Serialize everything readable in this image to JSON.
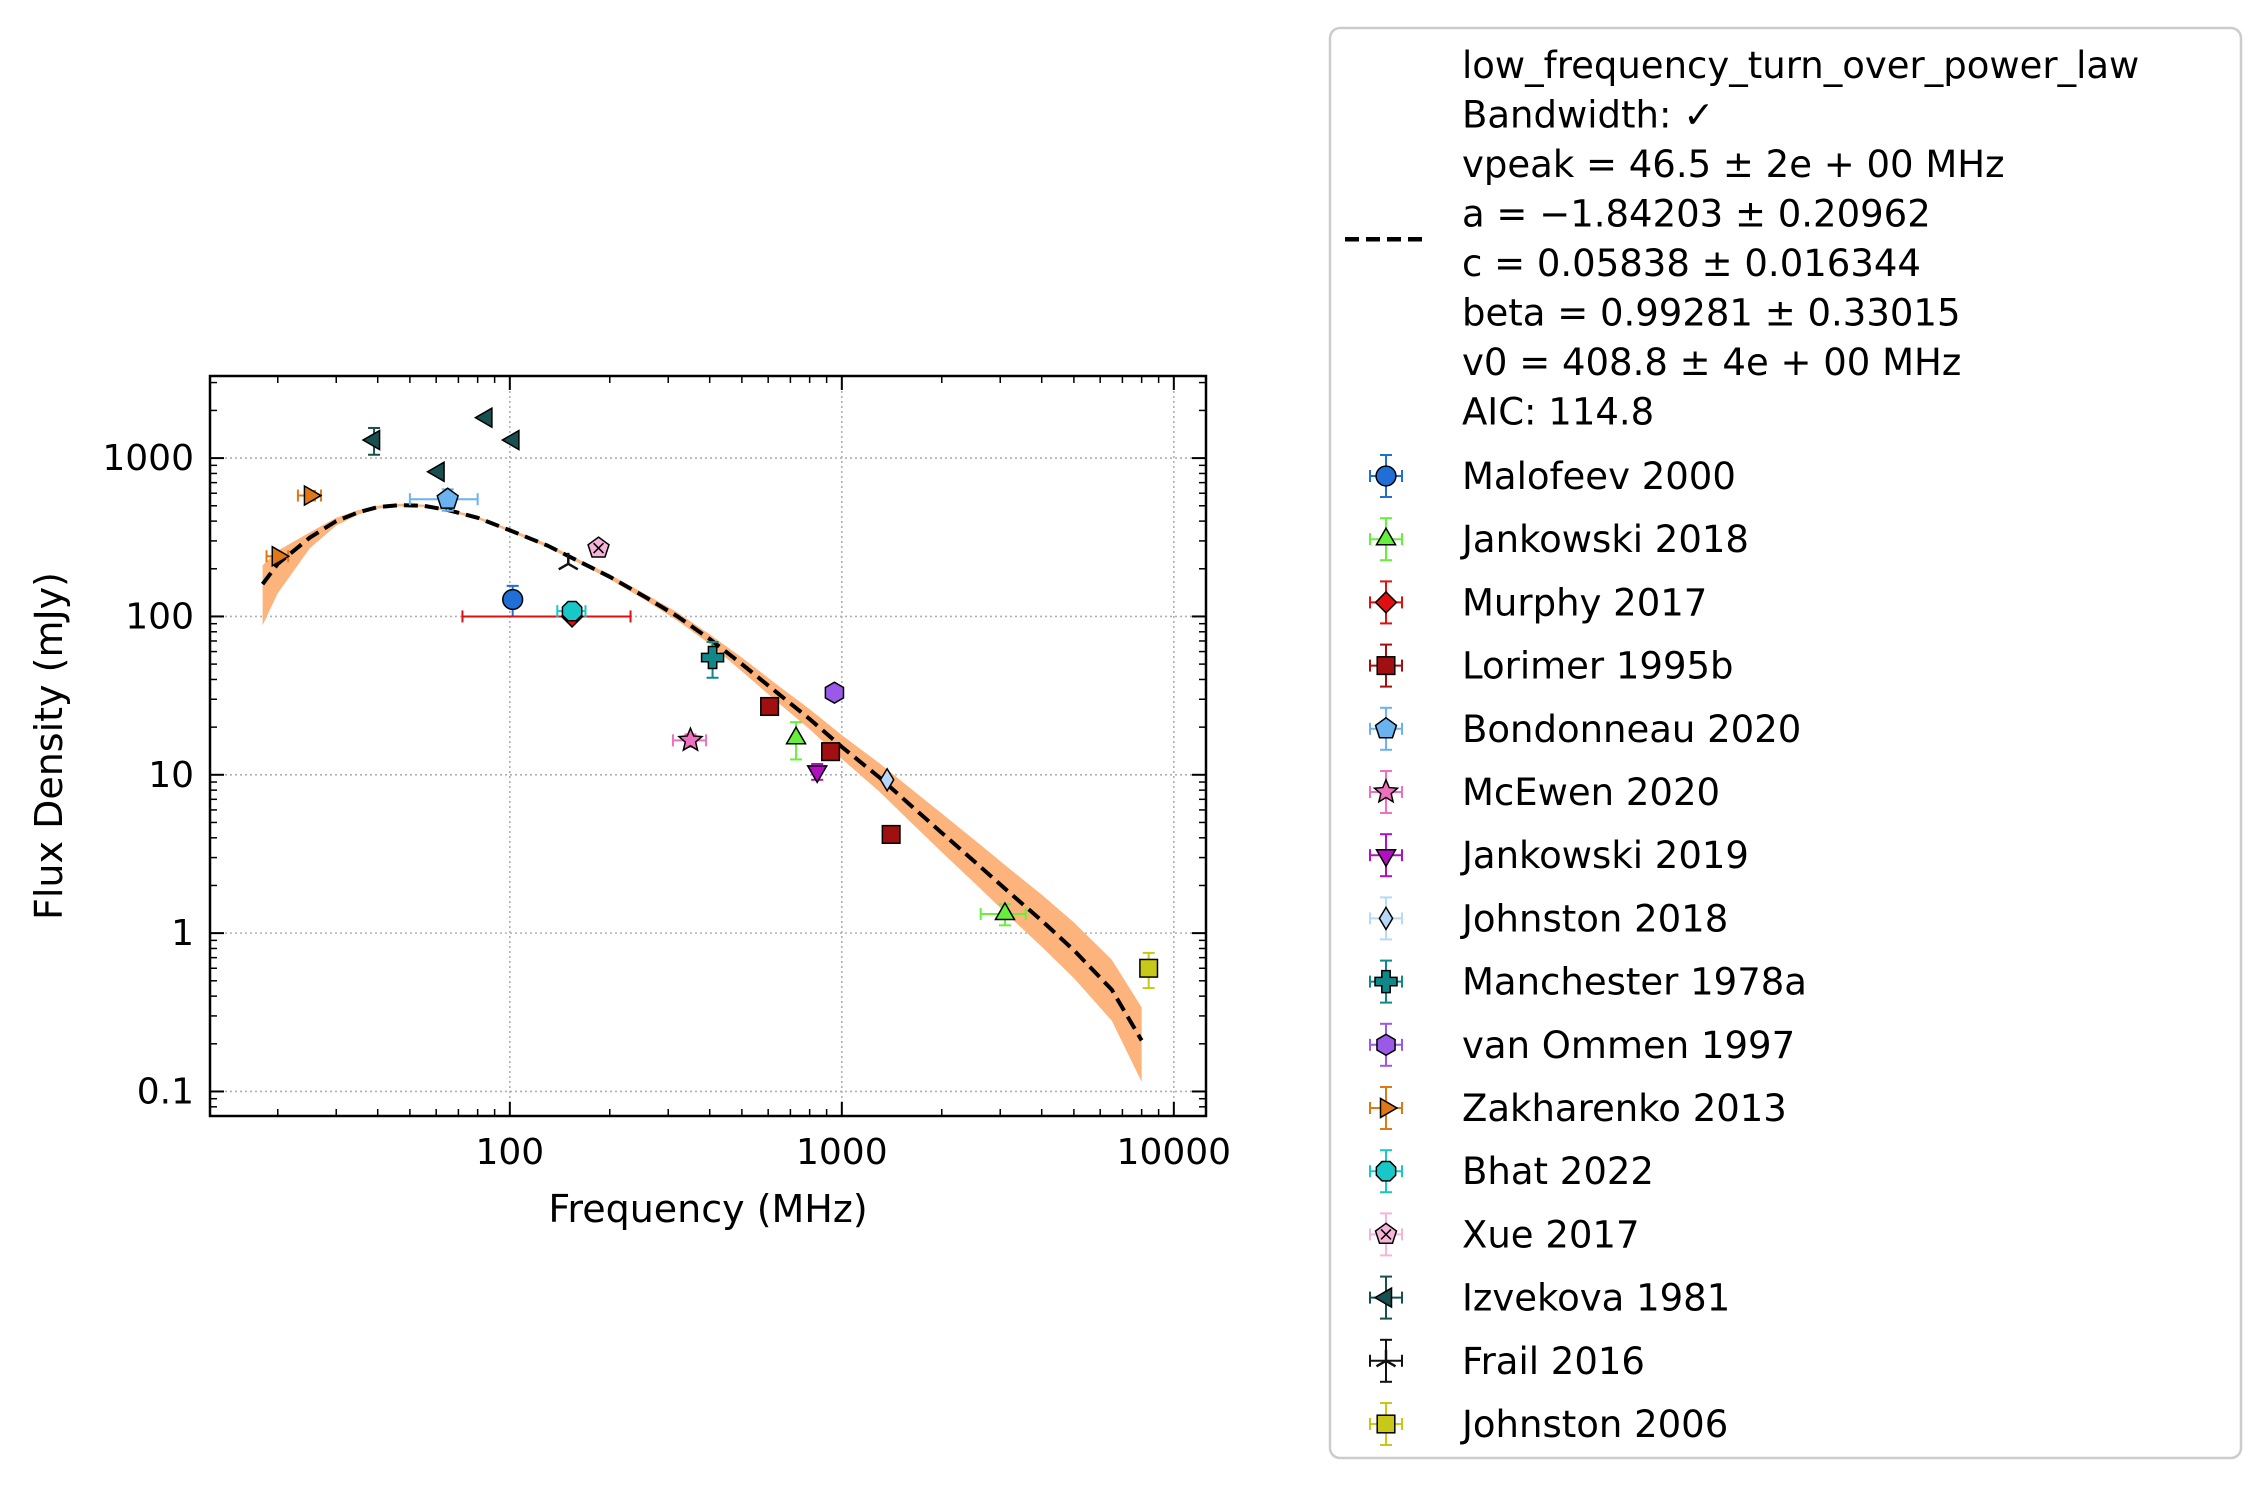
{
  "chart_data": {
    "type": "scatter",
    "xlabel": "Frequency (MHz)",
    "ylabel": "Flux Density (mJy)",
    "x_scale": "log",
    "y_scale": "log",
    "xlim": [
      12.5,
      12500
    ],
    "ylim": [
      0.07,
      3300
    ],
    "x_ticks": [
      {
        "value": 100,
        "label": "100"
      },
      {
        "value": 1000,
        "label": "1000"
      },
      {
        "value": 10000,
        "label": "10000"
      }
    ],
    "y_ticks": [
      {
        "value": 0.1,
        "label": "0.1"
      },
      {
        "value": 1,
        "label": "1"
      },
      {
        "value": 10,
        "label": "10"
      },
      {
        "value": 100,
        "label": "100"
      },
      {
        "value": 1000,
        "label": "1000"
      }
    ],
    "grid": true,
    "legend_placement": "outside-right",
    "fit": {
      "name": "low_frequency_turn_over_power_law",
      "line_style": "dashed",
      "color": "#000000",
      "band_color": "#fdb47c",
      "legend_lines": [
        "low_frequency_turn_over_power_law",
        "Bandwidth: ✓",
        "vpeak = 46.5 ± 2e + 00 MHz",
        "a = −1.84203 ± 0.20962",
        "c = 0.05838 ± 0.016344",
        "beta = 0.99281 ± 0.33015",
        "v0 = 408.8 ± 4e + 00 MHz",
        "AIC: 114.8"
      ],
      "x": [
        18,
        20,
        25,
        30,
        35,
        40,
        46.5,
        55,
        65,
        80,
        100,
        130,
        160,
        200,
        260,
        320,
        400,
        500,
        650,
        800,
        1000,
        1300,
        1600,
        2000,
        2600,
        3200,
        4000,
        5000,
        6500,
        8000
      ],
      "y": [
        160,
        215,
        315,
        400,
        455,
        490,
        505,
        500,
        470,
        420,
        350,
        280,
        225,
        178,
        130,
        100,
        72,
        50,
        32,
        22.5,
        15,
        9.6,
        6.5,
        4.3,
        2.65,
        1.8,
        1.2,
        0.78,
        0.44,
        0.21
      ],
      "band_upper": [
        210,
        260,
        340,
        420,
        470,
        500,
        515,
        508,
        478,
        428,
        357,
        287,
        231,
        184,
        136,
        106,
        77,
        55,
        36,
        26,
        17.8,
        11.8,
        8.3,
        5.7,
        3.65,
        2.55,
        1.75,
        1.17,
        0.68,
        0.34
      ],
      "band_lower": [
        88,
        140,
        270,
        375,
        440,
        480,
        495,
        492,
        462,
        412,
        343,
        273,
        219,
        172,
        124,
        94,
        67,
        45,
        28,
        19.4,
        12.6,
        7.8,
        5.1,
        3.25,
        1.93,
        1.27,
        0.82,
        0.52,
        0.28,
        0.115
      ]
    },
    "series": [
      {
        "name": "Malofeev 2000",
        "marker": "circle",
        "color": "#1f6fd6",
        "points": [
          {
            "x": 102,
            "y": 128,
            "xerr": [
              0,
              0
            ],
            "yerr": [
              28,
              28
            ]
          }
        ]
      },
      {
        "name": "Jankowski 2018",
        "marker": "triangle-up",
        "color": "#66f03c",
        "points": [
          {
            "x": 728,
            "y": 17,
            "xerr": [
              0,
              0
            ],
            "yerr": [
              4.5,
              4.5
            ]
          },
          {
            "x": 3100,
            "y": 1.32,
            "xerr": [
              480,
              480
            ],
            "yerr": [
              0.2,
              0.2
            ]
          }
        ]
      },
      {
        "name": "Murphy 2017",
        "marker": "diamond",
        "color": "#e01010",
        "points": [
          {
            "x": 154,
            "y": 100,
            "xerr": [
              82,
              77
            ],
            "yerr": [
              0,
              0
            ]
          }
        ]
      },
      {
        "name": "Lorimer 1995b",
        "marker": "square",
        "color": "#a01010",
        "points": [
          {
            "x": 606,
            "y": 27,
            "xerr": [
              0,
              0
            ],
            "yerr": [
              0,
              0
            ]
          },
          {
            "x": 925,
            "y": 14,
            "xerr": [
              0,
              0
            ],
            "yerr": [
              0,
              0
            ]
          },
          {
            "x": 1408,
            "y": 4.2,
            "xerr": [
              0,
              0
            ],
            "yerr": [
              0,
              0
            ]
          }
        ]
      },
      {
        "name": "Bondonneau 2020",
        "marker": "pentagon",
        "color": "#6ab3f0",
        "points": [
          {
            "x": 65,
            "y": 550,
            "xerr": [
              15,
              15
            ],
            "yerr": [
              85,
              85
            ]
          }
        ]
      },
      {
        "name": "McEwen 2020",
        "marker": "star",
        "color": "#f070c0",
        "points": [
          {
            "x": 350,
            "y": 16.5,
            "xerr": [
              40,
              40
            ],
            "yerr": [
              1.5,
              1.5
            ]
          }
        ]
      },
      {
        "name": "Jankowski 2019",
        "marker": "triangle-down",
        "color": "#b010c0",
        "points": [
          {
            "x": 843,
            "y": 10.5,
            "xerr": [
              0,
              0
            ],
            "yerr": [
              1.2,
              1.2
            ]
          }
        ]
      },
      {
        "name": "Johnston 2018",
        "marker": "thin-diamond",
        "color": "#b8d8f8",
        "points": [
          {
            "x": 1369,
            "y": 9.3,
            "xerr": [
              0,
              0
            ],
            "yerr": [
              0,
              0
            ]
          }
        ]
      },
      {
        "name": "Manchester 1978a",
        "marker": "plus",
        "color": "#108888",
        "points": [
          {
            "x": 408,
            "y": 55,
            "xerr": [
              0,
              0
            ],
            "yerr": [
              14,
              14
            ]
          }
        ]
      },
      {
        "name": "van Ommen 1997",
        "marker": "hexagon",
        "color": "#9b59e8",
        "points": [
          {
            "x": 950,
            "y": 33,
            "xerr": [
              0,
              0
            ],
            "yerr": [
              0,
              0
            ]
          }
        ]
      },
      {
        "name": "Zakharenko 2013",
        "marker": "triangle-right",
        "color": "#e07818",
        "points": [
          {
            "x": 20,
            "y": 240,
            "xerr": [
              1.5,
              1.5
            ],
            "yerr": [
              0,
              0
            ]
          },
          {
            "x": 25,
            "y": 580,
            "xerr": [
              2,
              2
            ],
            "yerr": [
              40,
              40
            ]
          }
        ]
      },
      {
        "name": "Bhat 2022",
        "marker": "octagon",
        "color": "#18c8c8",
        "points": [
          {
            "x": 154,
            "y": 108,
            "xerr": [
              15,
              15
            ],
            "yerr": [
              8,
              8
            ]
          }
        ]
      },
      {
        "name": "Xue 2017",
        "marker": "pentagon-x",
        "color": "#f5b5d8",
        "points": [
          {
            "x": 185,
            "y": 270,
            "xerr": [
              0,
              0
            ],
            "yerr": [
              25,
              25
            ]
          }
        ]
      },
      {
        "name": "Izvekova 1981",
        "marker": "triangle-left",
        "color": "#184f4f",
        "points": [
          {
            "x": 39,
            "y": 1300,
            "xerr": [
              0,
              0
            ],
            "yerr": [
              250,
              250
            ]
          },
          {
            "x": 61,
            "y": 820,
            "xerr": [
              0,
              0
            ],
            "yerr": [
              0,
              0
            ]
          },
          {
            "x": 85,
            "y": 1800,
            "xerr": [
              0,
              0
            ],
            "yerr": [
              0,
              0
            ]
          },
          {
            "x": 102.5,
            "y": 1300,
            "xerr": [
              0,
              0
            ],
            "yerr": [
              0,
              0
            ]
          }
        ]
      },
      {
        "name": "Frail 2016",
        "marker": "tri",
        "color": "#111111",
        "points": [
          {
            "x": 150,
            "y": 215,
            "xerr": [
              0,
              0
            ],
            "yerr": [
              0,
              0
            ]
          }
        ]
      },
      {
        "name": "Johnston 2006",
        "marker": "square",
        "color": "#c8c818",
        "points": [
          {
            "x": 8400,
            "y": 0.6,
            "xerr": [
              0,
              0
            ],
            "yerr": [
              0.15,
              0.15
            ]
          }
        ]
      }
    ]
  }
}
